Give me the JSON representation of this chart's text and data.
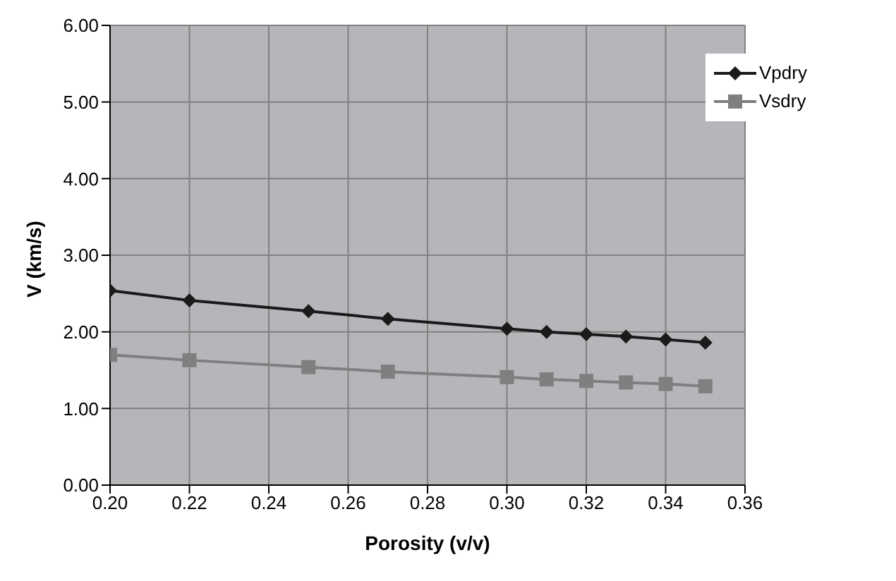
{
  "chart_data": {
    "type": "line",
    "xlabel": "Porosity (v/v)",
    "ylabel": "V (km/s)",
    "x": [
      0.2,
      0.22,
      0.25,
      0.27,
      0.3,
      0.31,
      0.32,
      0.33,
      0.34,
      0.35
    ],
    "series": [
      {
        "name": "Vpdry",
        "color": "#1a1a1a",
        "marker": "diamond",
        "values": [
          2.54,
          2.41,
          2.27,
          2.17,
          2.04,
          2.0,
          1.97,
          1.94,
          1.9,
          1.86
        ]
      },
      {
        "name": "Vsdry",
        "color": "#7f7f7f",
        "marker": "square",
        "values": [
          1.7,
          1.63,
          1.54,
          1.48,
          1.41,
          1.38,
          1.36,
          1.34,
          1.32,
          1.29
        ]
      }
    ],
    "xlim": [
      0.2,
      0.36
    ],
    "xticks": [
      {
        "value": 0.2,
        "label": "0.20"
      },
      {
        "value": 0.22,
        "label": "0.22"
      },
      {
        "value": 0.24,
        "label": "0.24"
      },
      {
        "value": 0.26,
        "label": "0.26"
      },
      {
        "value": 0.28,
        "label": "0.28"
      },
      {
        "value": 0.3,
        "label": "0.30"
      },
      {
        "value": 0.32,
        "label": "0.32"
      },
      {
        "value": 0.34,
        "label": "0.34"
      },
      {
        "value": 0.36,
        "label": "0.36"
      }
    ],
    "ylim": [
      0,
      6
    ],
    "yticks": [
      {
        "value": 0,
        "label": "0.00"
      },
      {
        "value": 1,
        "label": "1.00"
      },
      {
        "value": 2,
        "label": "2.00"
      },
      {
        "value": 3,
        "label": "3.00"
      },
      {
        "value": 4,
        "label": "4.00"
      },
      {
        "value": 5,
        "label": "5.00"
      },
      {
        "value": 6,
        "label": "6.00"
      }
    ],
    "grid": true,
    "legend": "top right",
    "line_style": "solid"
  }
}
